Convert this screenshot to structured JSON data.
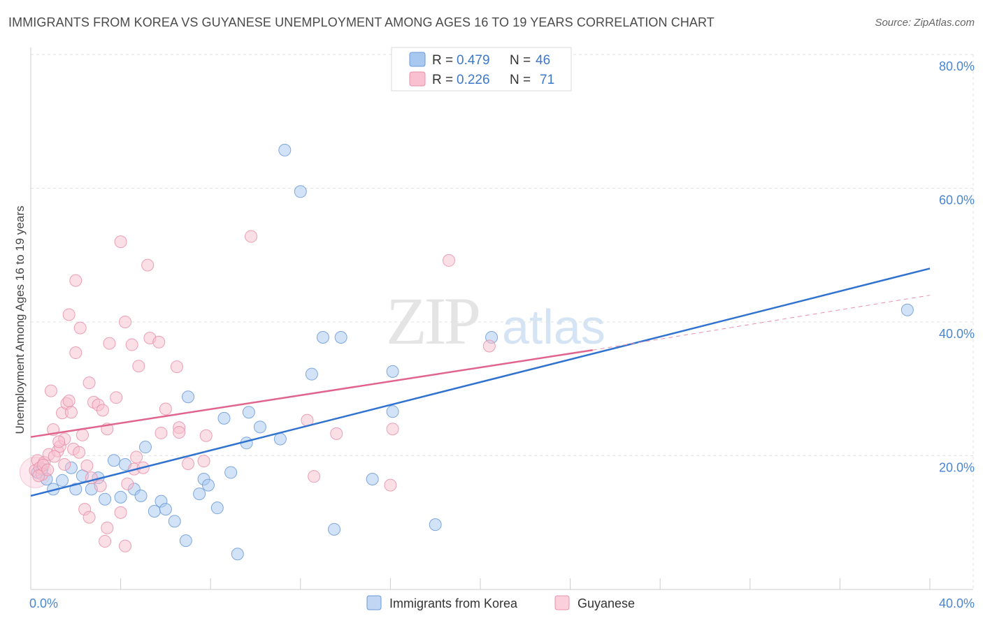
{
  "header": {
    "title": "IMMIGRANTS FROM KOREA VS GUYANESE UNEMPLOYMENT AMONG AGES 16 TO 19 YEARS CORRELATION CHART",
    "source": "Source: ZipAtlas.com"
  },
  "watermark": {
    "zip": "ZIP",
    "atlas": "atlas"
  },
  "legend": {
    "rows": [
      {
        "r_label": "R =",
        "r_value": "0.479",
        "n_label": "N =",
        "n_value": "46",
        "color": "#a8c8f0",
        "stroke": "#6a9ad8"
      },
      {
        "r_label": "R =",
        "r_value": "0.226",
        "n_label": "N =",
        "n_value": "71",
        "color": "#f8c0d0",
        "stroke": "#e890a8"
      }
    ]
  },
  "bottom_legend": {
    "items": [
      {
        "label": "Immigrants from Korea",
        "color": "#c0d6f3",
        "stroke": "#6a9ad8"
      },
      {
        "label": "Guyanese",
        "color": "#fbd0dc",
        "stroke": "#e890a8"
      }
    ]
  },
  "chart_data": {
    "type": "scatter",
    "title": "IMMIGRANTS FROM KOREA VS GUYANESE UNEMPLOYMENT AMONG AGES 16 TO 19 YEARS CORRELATION CHART",
    "xlabel": "",
    "ylabel": "Unemployment Among Ages 16 to 19 years",
    "xlim": [
      0,
      40
    ],
    "ylim": [
      0,
      80
    ],
    "x_tick_labels": [
      "0.0%",
      "40.0%"
    ],
    "y_tick_labels": [
      "20.0%",
      "40.0%",
      "60.0%",
      "80.0%"
    ],
    "y_ticks": [
      20,
      40,
      60,
      80
    ],
    "series": [
      {
        "name": "Immigrants from Korea",
        "color": "#6a9ad8",
        "fill": "#a8c8f0",
        "points": [
          [
            0.3,
            17.5
          ],
          [
            0.5,
            18.0
          ],
          [
            0.7,
            16.5
          ],
          [
            1.0,
            15.0
          ],
          [
            1.4,
            16.3
          ],
          [
            1.8,
            18.2
          ],
          [
            2.0,
            15.0
          ],
          [
            2.3,
            17.0
          ],
          [
            2.7,
            15.0
          ],
          [
            3.0,
            16.7
          ],
          [
            3.3,
            13.5
          ],
          [
            3.7,
            19.3
          ],
          [
            4.0,
            13.8
          ],
          [
            4.2,
            18.7
          ],
          [
            4.6,
            15.0
          ],
          [
            4.9,
            14.0
          ],
          [
            5.1,
            21.3
          ],
          [
            5.5,
            11.7
          ],
          [
            5.8,
            13.2
          ],
          [
            6.0,
            12.0
          ],
          [
            6.4,
            10.2
          ],
          [
            6.9,
            7.3
          ],
          [
            7.0,
            28.8
          ],
          [
            7.5,
            14.3
          ],
          [
            7.7,
            16.5
          ],
          [
            7.9,
            15.6
          ],
          [
            8.3,
            12.2
          ],
          [
            8.6,
            25.6
          ],
          [
            8.9,
            17.5
          ],
          [
            9.2,
            5.3
          ],
          [
            9.6,
            21.9
          ],
          [
            9.7,
            26.5
          ],
          [
            10.2,
            24.3
          ],
          [
            11.1,
            22.5
          ],
          [
            11.3,
            65.7
          ],
          [
            12.0,
            59.5
          ],
          [
            12.5,
            32.2
          ],
          [
            13.0,
            37.7
          ],
          [
            13.5,
            9.0
          ],
          [
            13.8,
            37.7
          ],
          [
            15.2,
            16.5
          ],
          [
            16.1,
            26.6
          ],
          [
            16.1,
            32.6
          ],
          [
            18.0,
            9.7
          ],
          [
            20.5,
            37.7
          ],
          [
            39.0,
            41.8
          ]
        ],
        "trend": {
          "x0": 0,
          "y0": 14.0,
          "x1": 40,
          "y1": 48.0
        }
      },
      {
        "name": "Guyanese",
        "color": "#e890a8",
        "fill": "#f8c0d0",
        "points": [
          [
            0.2,
            17.8
          ],
          [
            0.3,
            19.3
          ],
          [
            0.4,
            18.2
          ],
          [
            0.5,
            17.2
          ],
          [
            0.6,
            19.0
          ],
          [
            0.8,
            20.2
          ],
          [
            0.9,
            29.7
          ],
          [
            1.0,
            23.9
          ],
          [
            1.2,
            20.7
          ],
          [
            1.3,
            21.4
          ],
          [
            1.4,
            26.4
          ],
          [
            1.5,
            18.7
          ],
          [
            1.5,
            22.5
          ],
          [
            1.6,
            27.8
          ],
          [
            1.7,
            28.2
          ],
          [
            1.8,
            26.5
          ],
          [
            1.9,
            21.0
          ],
          [
            1.7,
            41.1
          ],
          [
            2.0,
            35.4
          ],
          [
            2.0,
            46.2
          ],
          [
            2.2,
            39.1
          ],
          [
            2.3,
            23.1
          ],
          [
            2.4,
            12.0
          ],
          [
            2.5,
            18.5
          ],
          [
            2.6,
            30.9
          ],
          [
            2.6,
            10.8
          ],
          [
            2.7,
            16.7
          ],
          [
            2.8,
            28.0
          ],
          [
            3.0,
            27.6
          ],
          [
            3.1,
            15.5
          ],
          [
            3.2,
            26.8
          ],
          [
            3.3,
            7.2
          ],
          [
            3.4,
            24.0
          ],
          [
            3.4,
            9.2
          ],
          [
            3.5,
            36.8
          ],
          [
            3.8,
            28.7
          ],
          [
            4.0,
            11.5
          ],
          [
            4.0,
            52.0
          ],
          [
            4.2,
            6.5
          ],
          [
            4.2,
            40.0
          ],
          [
            4.3,
            15.8
          ],
          [
            4.5,
            36.6
          ],
          [
            4.6,
            18.0
          ],
          [
            4.7,
            19.8
          ],
          [
            4.8,
            33.4
          ],
          [
            5.0,
            18.2
          ],
          [
            5.2,
            48.5
          ],
          [
            5.3,
            37.6
          ],
          [
            5.7,
            37.0
          ],
          [
            5.8,
            23.4
          ],
          [
            6.0,
            27.0
          ],
          [
            6.5,
            33.3
          ],
          [
            6.6,
            24.2
          ],
          [
            6.6,
            23.5
          ],
          [
            7.0,
            18.8
          ],
          [
            7.7,
            19.2
          ],
          [
            7.8,
            23.0
          ],
          [
            9.8,
            52.8
          ],
          [
            12.3,
            25.3
          ],
          [
            12.6,
            16.9
          ],
          [
            13.6,
            23.3
          ],
          [
            16.0,
            15.6
          ],
          [
            16.1,
            24.0
          ],
          [
            18.6,
            49.2
          ],
          [
            20.4,
            36.4
          ],
          [
            0.35,
            17.0
          ],
          [
            0.55,
            18.6
          ],
          [
            0.75,
            17.9
          ],
          [
            1.05,
            19.9
          ],
          [
            1.25,
            22.1
          ],
          [
            2.15,
            20.5
          ]
        ],
        "trend": {
          "x0": 0,
          "y0": 22.8,
          "x1": 25,
          "y1": 35.8
        },
        "trend_dashed": {
          "x0": 25,
          "y0": 35.8,
          "x1": 40,
          "y1": 44.0
        }
      }
    ]
  }
}
